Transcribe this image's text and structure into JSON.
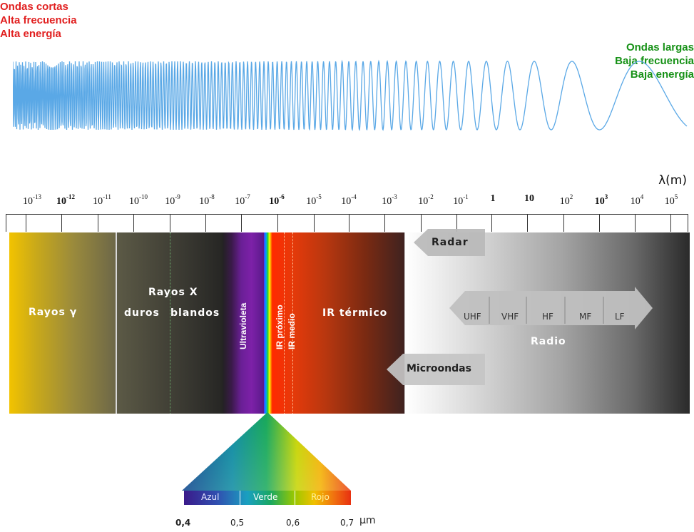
{
  "left_header": [
    "Ondas cortas",
    "Alta frecuencia",
    "Alta energía"
  ],
  "right_header": [
    "Ondas largas",
    "Baja frecuencia",
    "Baja energía"
  ],
  "axis_unit": "λ(m)",
  "ticks": [
    {
      "base": "10",
      "exp": "-13",
      "bold": false
    },
    {
      "base": "10",
      "exp": "-12",
      "bold": true
    },
    {
      "base": "10",
      "exp": "-11",
      "bold": false
    },
    {
      "base": "10",
      "exp": "-10",
      "bold": false
    },
    {
      "base": "10",
      "exp": "-9",
      "bold": false
    },
    {
      "base": "10",
      "exp": "-8",
      "bold": false
    },
    {
      "base": "10",
      "exp": "-7",
      "bold": false
    },
    {
      "base": "10",
      "exp": "-6",
      "bold": true
    },
    {
      "base": "10",
      "exp": "-5",
      "bold": false
    },
    {
      "base": "10",
      "exp": "-4",
      "bold": false
    },
    {
      "base": "10",
      "exp": "-3",
      "bold": false
    },
    {
      "base": "10",
      "exp": "-2",
      "bold": false
    },
    {
      "base": "10",
      "exp": "-1",
      "bold": false
    },
    {
      "base": "1",
      "exp": "",
      "bold": true
    },
    {
      "base": "10",
      "exp": "",
      "bold": true
    },
    {
      "base": "10",
      "exp": "2",
      "bold": false
    },
    {
      "base": "10",
      "exp": "3",
      "bold": true
    },
    {
      "base": "10",
      "exp": "4",
      "bold": false
    },
    {
      "base": "10",
      "exp": "5",
      "bold": false
    }
  ],
  "bands": {
    "gamma": "Rayos γ",
    "xray": "Rayos X",
    "xray_hard": "duros",
    "xray_soft": "blandos",
    "uv": "Ultravioleta",
    "ir_near": "IR próximo",
    "ir_mid": "IR medio",
    "ir_thermal": "IR térmico",
    "radar": "Radar",
    "microwaves": "Microondas",
    "radio": "Radio",
    "radio_bands": [
      "UHF",
      "VHF",
      "HF",
      "MF",
      "LF"
    ]
  },
  "visible": {
    "labels": [
      "Azul",
      "Verde",
      "Rojo"
    ],
    "scale": [
      "0,4",
      "0,5",
      "0,6",
      "0,7"
    ],
    "unit": "μm"
  },
  "colors": {
    "short_wave_text": "#e11f1f",
    "long_wave_text": "#169116",
    "wave": "#5aa8e6"
  }
}
